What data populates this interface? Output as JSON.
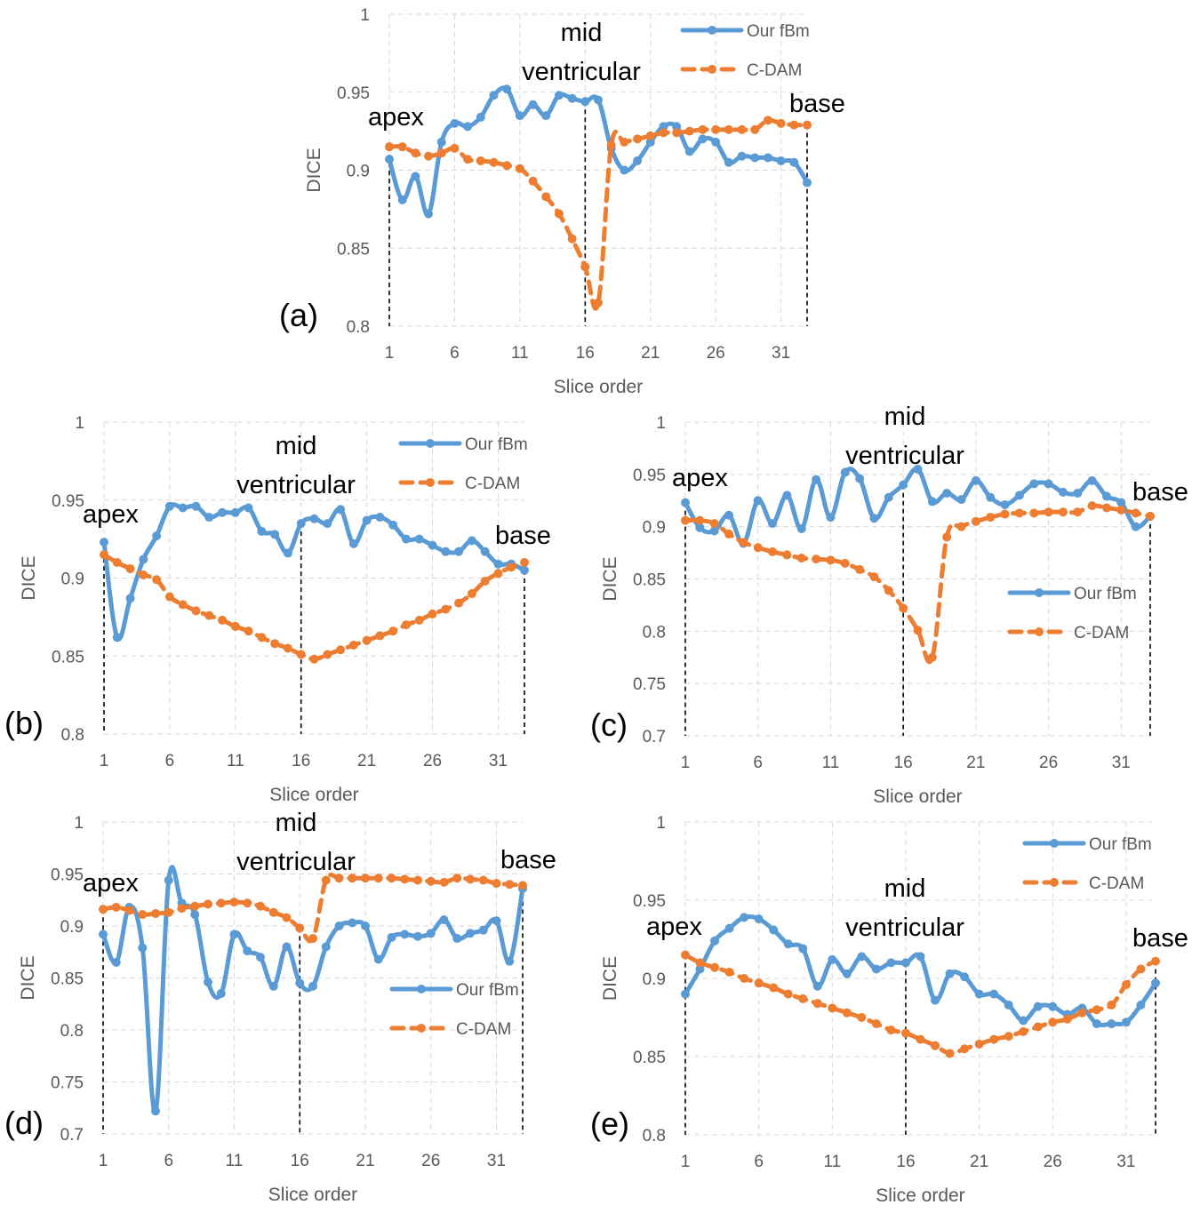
{
  "colors": {
    "fbm": "#5B9BD5",
    "cdam": "#ED7D31",
    "grid": "#D9D9D9",
    "axis_text": "#595959"
  },
  "chart_data": [
    {
      "panel": "(a)",
      "type": "line",
      "xlabel": "Slice order",
      "ylabel": "DICE",
      "ylim": [
        0.8,
        1
      ],
      "yticks": [
        "0.8",
        "0.85",
        "0.9",
        "0.95",
        "1"
      ],
      "xticks": [
        "1",
        "6",
        "11",
        "16",
        "21",
        "26",
        "31"
      ],
      "x": [
        1,
        2,
        3,
        4,
        5,
        6,
        7,
        8,
        9,
        10,
        11,
        12,
        13,
        14,
        15,
        16,
        17,
        18,
        19,
        20,
        21,
        22,
        23,
        24,
        25,
        26,
        27,
        28,
        29,
        30,
        31,
        32,
        33
      ],
      "series": [
        {
          "name": "Our fBm",
          "style": "solid",
          "values": [
            0.907,
            0.881,
            0.896,
            0.872,
            0.918,
            0.93,
            0.928,
            0.934,
            0.948,
            0.952,
            0.935,
            0.942,
            0.935,
            0.948,
            0.946,
            0.944,
            0.945,
            0.914,
            0.9,
            0.906,
            0.918,
            0.928,
            0.928,
            0.912,
            0.92,
            0.918,
            0.905,
            0.909,
            0.908,
            0.908,
            0.906,
            0.905,
            0.892
          ]
        },
        {
          "name": "C-DAM",
          "style": "dashed",
          "values": [
            0.915,
            0.915,
            0.911,
            0.909,
            0.911,
            0.914,
            0.907,
            0.906,
            0.905,
            0.903,
            0.901,
            0.893,
            0.883,
            0.872,
            0.856,
            0.838,
            0.815,
            0.916,
            0.918,
            0.92,
            0.922,
            0.924,
            0.924,
            0.925,
            0.926,
            0.926,
            0.926,
            0.926,
            0.926,
            0.932,
            0.93,
            0.929,
            0.929
          ]
        }
      ],
      "annotations": {
        "apex": "apex",
        "mid": [
          "mid",
          "ventricular"
        ],
        "base": "base"
      },
      "legend": [
        "Our fBm",
        "C-DAM"
      ]
    },
    {
      "panel": "(b)",
      "type": "line",
      "xlabel": "Slice order",
      "ylabel": "DICE",
      "ylim": [
        0.8,
        1
      ],
      "yticks": [
        "0.8",
        "0.85",
        "0.9",
        "0.95",
        "1"
      ],
      "xticks": [
        "1",
        "6",
        "11",
        "16",
        "21",
        "26",
        "31"
      ],
      "x": [
        1,
        2,
        3,
        4,
        5,
        6,
        7,
        8,
        9,
        10,
        11,
        12,
        13,
        14,
        15,
        16,
        17,
        18,
        19,
        20,
        21,
        22,
        23,
        24,
        25,
        26,
        27,
        28,
        29,
        30,
        31,
        32,
        33
      ],
      "series": [
        {
          "name": "Our fBm",
          "style": "solid",
          "values": [
            0.923,
            0.862,
            0.887,
            0.912,
            0.927,
            0.946,
            0.945,
            0.946,
            0.939,
            0.942,
            0.942,
            0.945,
            0.93,
            0.928,
            0.916,
            0.935,
            0.938,
            0.935,
            0.944,
            0.922,
            0.937,
            0.939,
            0.934,
            0.925,
            0.925,
            0.921,
            0.917,
            0.917,
            0.924,
            0.917,
            0.909,
            0.909,
            0.905
          ]
        },
        {
          "name": "C-DAM",
          "style": "dashed",
          "values": [
            0.915,
            0.91,
            0.906,
            0.902,
            0.899,
            0.888,
            0.883,
            0.879,
            0.876,
            0.873,
            0.869,
            0.866,
            0.862,
            0.858,
            0.855,
            0.851,
            0.848,
            0.851,
            0.854,
            0.857,
            0.86,
            0.863,
            0.866,
            0.87,
            0.873,
            0.877,
            0.88,
            0.884,
            0.89,
            0.898,
            0.903,
            0.907,
            0.91
          ]
        }
      ],
      "annotations": {
        "apex": "apex",
        "mid": [
          "mid",
          "ventricular"
        ],
        "base": "base"
      },
      "legend": [
        "Our fBm",
        "C-DAM"
      ]
    },
    {
      "panel": "(c)",
      "type": "line",
      "xlabel": "Slice order",
      "ylabel": "DICE",
      "ylim": [
        0.7,
        1
      ],
      "yticks": [
        "0.7",
        "0.75",
        "0.8",
        "0.85",
        "0.9",
        "0.95",
        "1"
      ],
      "xticks": [
        "1",
        "6",
        "11",
        "16",
        "21",
        "26",
        "31"
      ],
      "x": [
        1,
        2,
        3,
        4,
        5,
        6,
        7,
        8,
        9,
        10,
        11,
        12,
        13,
        14,
        15,
        16,
        17,
        18,
        19,
        20,
        21,
        22,
        23,
        24,
        25,
        26,
        27,
        28,
        29,
        30,
        31,
        32,
        33
      ],
      "series": [
        {
          "name": "Our fBm",
          "style": "solid",
          "values": [
            0.923,
            0.899,
            0.896,
            0.911,
            0.884,
            0.925,
            0.903,
            0.93,
            0.898,
            0.945,
            0.909,
            0.952,
            0.946,
            0.908,
            0.928,
            0.94,
            0.955,
            0.924,
            0.932,
            0.926,
            0.944,
            0.928,
            0.921,
            0.93,
            0.941,
            0.941,
            0.933,
            0.932,
            0.944,
            0.929,
            0.923,
            0.9,
            0.91
          ]
        },
        {
          "name": "C-DAM",
          "style": "dashed",
          "values": [
            0.906,
            0.906,
            0.903,
            0.893,
            0.885,
            0.88,
            0.876,
            0.873,
            0.87,
            0.869,
            0.868,
            0.865,
            0.859,
            0.852,
            0.839,
            0.822,
            0.801,
            0.775,
            0.89,
            0.9,
            0.905,
            0.909,
            0.912,
            0.913,
            0.913,
            0.914,
            0.914,
            0.914,
            0.92,
            0.918,
            0.916,
            0.913,
            0.91
          ]
        }
      ],
      "annotations": {
        "apex": "apex",
        "mid": [
          "mid",
          "ventricular"
        ],
        "base": "base"
      },
      "legend": [
        "Our fBm",
        "C-DAM"
      ]
    },
    {
      "panel": "(d)",
      "type": "line",
      "xlabel": "Slice order",
      "ylabel": "DICE",
      "ylim": [
        0.7,
        1
      ],
      "yticks": [
        "0.7",
        "0.75",
        "0.8",
        "0.85",
        "0.9",
        "0.95",
        "1"
      ],
      "xticks": [
        "1",
        "6",
        "11",
        "16",
        "21",
        "26",
        "31"
      ],
      "x": [
        1,
        2,
        3,
        4,
        5,
        6,
        7,
        8,
        9,
        10,
        11,
        12,
        13,
        14,
        15,
        16,
        17,
        18,
        19,
        20,
        21,
        22,
        23,
        24,
        25,
        26,
        27,
        28,
        29,
        30,
        31,
        32,
        33
      ],
      "series": [
        {
          "name": "Our fBm",
          "style": "solid",
          "values": [
            0.892,
            0.865,
            0.918,
            0.879,
            0.722,
            0.944,
            0.922,
            0.911,
            0.846,
            0.835,
            0.892,
            0.876,
            0.87,
            0.842,
            0.88,
            0.845,
            0.842,
            0.88,
            0.9,
            0.903,
            0.9,
            0.868,
            0.889,
            0.892,
            0.89,
            0.893,
            0.906,
            0.888,
            0.893,
            0.896,
            0.905,
            0.866,
            0.936
          ]
        },
        {
          "name": "C-DAM",
          "style": "dashed",
          "values": [
            0.916,
            0.918,
            0.915,
            0.911,
            0.912,
            0.913,
            0.917,
            0.919,
            0.921,
            0.922,
            0.923,
            0.922,
            0.919,
            0.913,
            0.908,
            0.898,
            0.888,
            0.944,
            0.946,
            0.946,
            0.946,
            0.946,
            0.946,
            0.945,
            0.944,
            0.943,
            0.942,
            0.946,
            0.945,
            0.944,
            0.941,
            0.94,
            0.939
          ]
        }
      ],
      "annotations": {
        "apex": "apex",
        "mid": [
          "mid",
          "ventricular"
        ],
        "base": "base"
      },
      "legend": [
        "Our fBm",
        "C-DAM"
      ]
    },
    {
      "panel": "(e)",
      "type": "line",
      "xlabel": "Slice order",
      "ylabel": "DICE",
      "ylim": [
        0.8,
        1
      ],
      "yticks": [
        "0.8",
        "0.85",
        "0.9",
        "0.95",
        "1"
      ],
      "xticks": [
        "1",
        "6",
        "11",
        "16",
        "21",
        "26",
        "31"
      ],
      "x": [
        1,
        2,
        3,
        4,
        5,
        6,
        7,
        8,
        9,
        10,
        11,
        12,
        13,
        14,
        15,
        16,
        17,
        18,
        19,
        20,
        21,
        22,
        23,
        24,
        25,
        26,
        27,
        28,
        29,
        30,
        31,
        32,
        33
      ],
      "series": [
        {
          "name": "Our fBm",
          "style": "solid",
          "values": [
            0.89,
            0.906,
            0.924,
            0.932,
            0.939,
            0.938,
            0.931,
            0.922,
            0.919,
            0.895,
            0.912,
            0.903,
            0.914,
            0.906,
            0.91,
            0.91,
            0.914,
            0.886,
            0.903,
            0.901,
            0.89,
            0.89,
            0.883,
            0.873,
            0.882,
            0.882,
            0.877,
            0.881,
            0.871,
            0.871,
            0.872,
            0.883,
            0.897
          ]
        },
        {
          "name": "C-DAM",
          "style": "dashed",
          "values": [
            0.915,
            0.91,
            0.907,
            0.904,
            0.9,
            0.897,
            0.894,
            0.89,
            0.887,
            0.884,
            0.881,
            0.878,
            0.875,
            0.871,
            0.867,
            0.865,
            0.861,
            0.857,
            0.852,
            0.855,
            0.858,
            0.861,
            0.863,
            0.866,
            0.869,
            0.872,
            0.874,
            0.878,
            0.88,
            0.883,
            0.896,
            0.906,
            0.911
          ]
        }
      ],
      "annotations": {
        "apex": "apex",
        "mid": [
          "mid",
          "ventricular"
        ],
        "base": "base"
      },
      "legend": [
        "Our fBm",
        "C-DAM"
      ]
    }
  ]
}
